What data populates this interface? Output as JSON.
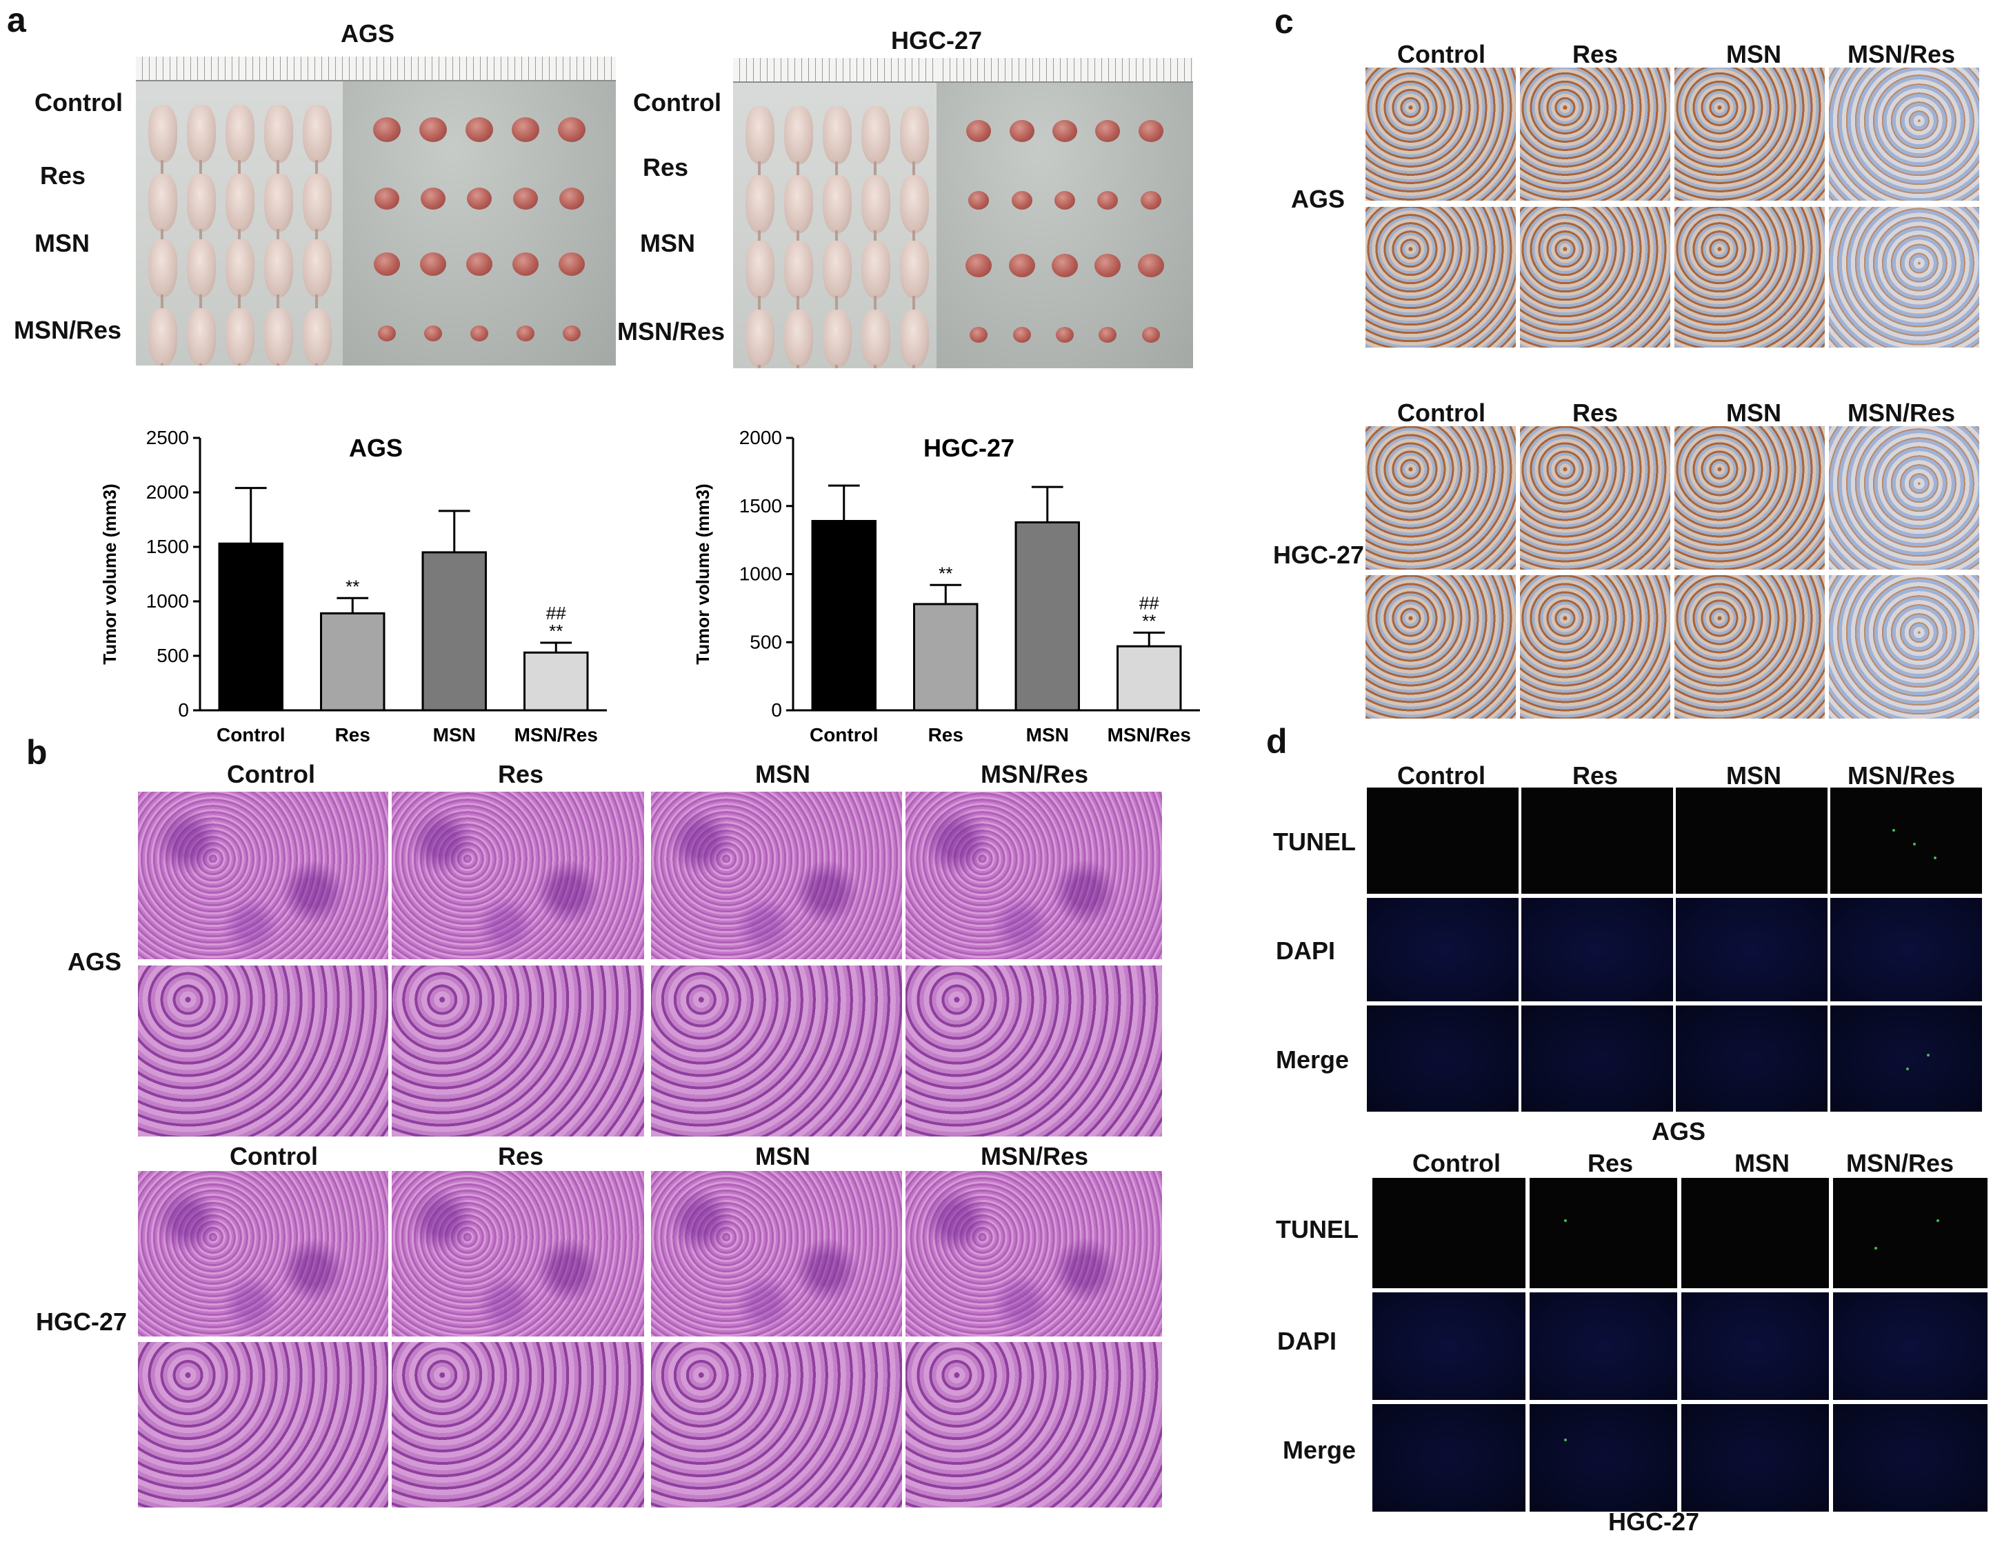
{
  "panels": {
    "a": "a",
    "b": "b",
    "c": "c",
    "d": "d"
  },
  "panel_a": {
    "left_title": "AGS",
    "right_title": "HGC-27",
    "groups": [
      "Control",
      "Res",
      "MSN",
      "MSN/Res"
    ]
  },
  "panel_b": {
    "groups": [
      "Control",
      "Res",
      "MSN",
      "MSN/Res"
    ],
    "rows": [
      "AGS",
      "HGC-27"
    ]
  },
  "panel_c": {
    "groups": [
      "Control",
      "Res",
      "MSN",
      "MSN/Res"
    ],
    "rows": [
      "AGS",
      "HGC-27"
    ]
  },
  "panel_d": {
    "groups": [
      "Control",
      "Res",
      "MSN",
      "MSN/Res"
    ],
    "stains": [
      "TUNEL",
      "DAPI",
      "Merge"
    ],
    "block_labels": [
      "AGS",
      "HGC-27"
    ]
  },
  "colors": {
    "control_bar": "#000000",
    "res_bar": "#a6a6a6",
    "msn_bar": "#7a7a7a",
    "msnres_bar": "#d9d9d9"
  },
  "chart_data": [
    {
      "type": "bar",
      "title": "AGS",
      "ylabel": "Tumor volume (mm3)",
      "categories": [
        "Control",
        "Res",
        "MSN",
        "MSN/Res"
      ],
      "values": [
        1530,
        890,
        1450,
        530
      ],
      "errors": [
        510,
        140,
        380,
        90
      ],
      "annotations": [
        "",
        "**",
        "",
        "##\n**"
      ],
      "ylim": [
        0,
        2500
      ],
      "yticks": [
        "0",
        "500",
        "1000",
        "1500",
        "2000",
        "2500"
      ]
    },
    {
      "type": "bar",
      "title": "HGC-27",
      "ylabel": "Tumor volume (mm3)",
      "categories": [
        "Control",
        "Res",
        "MSN",
        "MSN/Res"
      ],
      "values": [
        1390,
        780,
        1380,
        470
      ],
      "errors": [
        260,
        140,
        260,
        100
      ],
      "annotations": [
        "",
        "**",
        "",
        "##\n**"
      ],
      "ylim": [
        0,
        2000
      ],
      "yticks": [
        "0",
        "500",
        "1000",
        "1500",
        "2000"
      ]
    }
  ]
}
